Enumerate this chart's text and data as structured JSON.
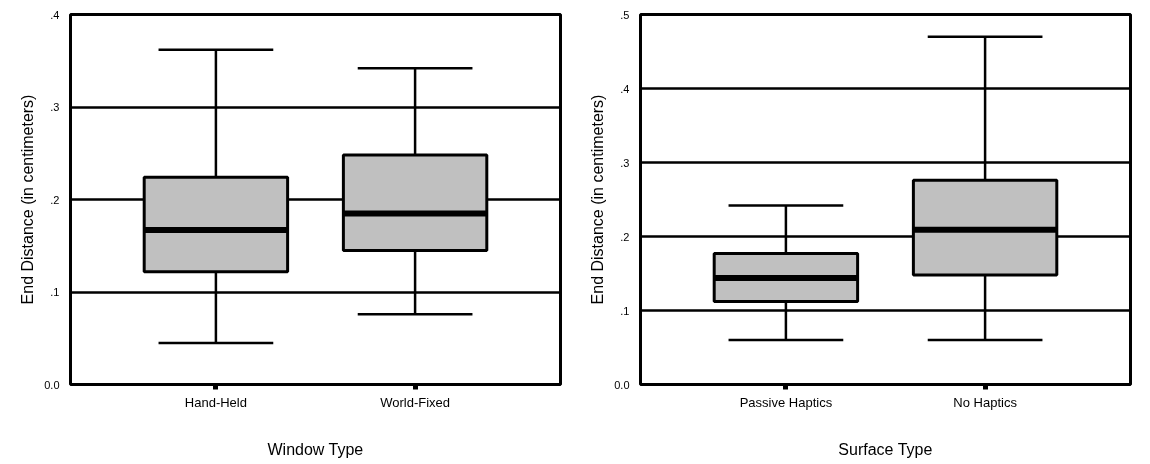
{
  "chart_data": [
    {
      "type": "box",
      "xlabel": "Window Type",
      "ylabel": "End Distance (in centimeters)",
      "categories": [
        "Hand-Held",
        "World-Fixed"
      ],
      "series": [
        {
          "color": "#c0c0c0",
          "boxes": [
            {
              "low": 0.045,
              "q1": 0.122,
              "median": 0.167,
              "q3": 0.224,
              "high": 0.362
            },
            {
              "low": 0.076,
              "q1": 0.145,
              "median": 0.185,
              "q3": 0.248,
              "high": 0.342
            }
          ]
        }
      ],
      "ylim": [
        0,
        0.4
      ],
      "yticks": [
        {
          "value": 0,
          "label": "0.0"
        },
        {
          "value": 0.1,
          "label": ".1"
        },
        {
          "value": 0.2,
          "label": ".2"
        },
        {
          "value": 0.3,
          "label": ".3"
        },
        {
          "value": 0.4,
          "label": ".4"
        }
      ],
      "grid": "y"
    },
    {
      "type": "box",
      "xlabel": "Surface Type",
      "ylabel": "End Distance (in centimeters)",
      "categories": [
        "Passive Haptics",
        "No Haptics"
      ],
      "series": [
        {
          "color": "#c0c0c0",
          "boxes": [
            {
              "low": 0.06,
              "q1": 0.112,
              "median": 0.144,
              "q3": 0.177,
              "high": 0.242
            },
            {
              "low": 0.06,
              "q1": 0.148,
              "median": 0.209,
              "q3": 0.276,
              "high": 0.47
            }
          ]
        }
      ],
      "ylim": [
        0,
        0.5
      ],
      "yticks": [
        {
          "value": 0,
          "label": "0.0"
        },
        {
          "value": 0.1,
          "label": ".1"
        },
        {
          "value": 0.2,
          "label": ".2"
        },
        {
          "value": 0.3,
          "label": ".3"
        },
        {
          "value": 0.4,
          "label": ".4"
        },
        {
          "value": 0.5,
          "label": ".5"
        }
      ],
      "grid": "y"
    }
  ]
}
